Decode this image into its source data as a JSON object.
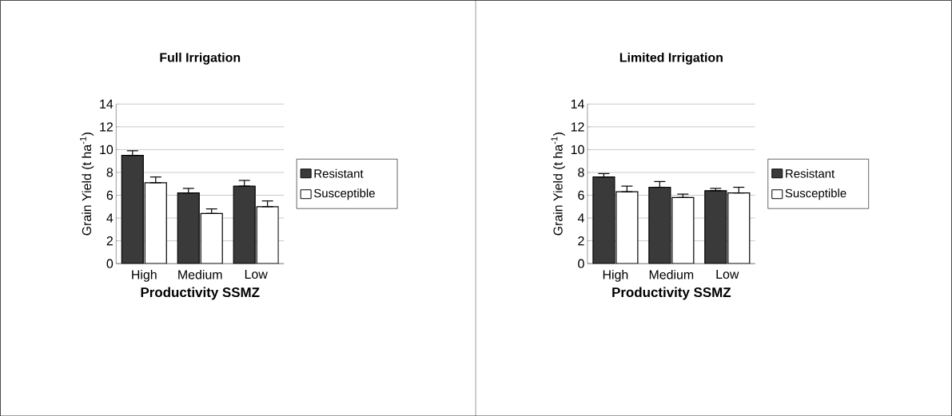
{
  "chart_data": [
    {
      "type": "bar",
      "title": "Full Irrigation",
      "xlabel": "Productivity SSMZ",
      "ylabel": "Grain Yield (t ha$^{-1}$)",
      "categories": [
        "High",
        "Medium",
        "Low"
      ],
      "series": [
        {
          "name": "Resistant",
          "color": "#3a3a3a",
          "values": [
            9.5,
            6.2,
            6.8
          ],
          "errors": [
            [
              9.5,
              9.9
            ],
            [
              6.2,
              6.6
            ],
            [
              6.8,
              7.3
            ]
          ]
        },
        {
          "name": "Susceptible",
          "color": "#ffffff",
          "values": [
            7.1,
            4.4,
            5.0
          ],
          "errors": [
            [
              7.1,
              7.6
            ],
            [
              4.4,
              4.8
            ],
            [
              5.0,
              5.5
            ]
          ]
        }
      ],
      "ylim": [
        0,
        14
      ],
      "yticks": [
        0,
        2,
        4,
        6,
        8,
        10,
        12,
        14
      ],
      "grid": "y",
      "legend": "right"
    },
    {
      "type": "bar",
      "title": "Limited Irrigation",
      "xlabel": "Productivity SSMZ",
      "ylabel": "Grain Yield (t ha$^{-1}$)",
      "categories": [
        "High",
        "Medium",
        "Low"
      ],
      "series": [
        {
          "name": "Resistant",
          "color": "#3a3a3a",
          "values": [
            7.6,
            6.7,
            6.4
          ],
          "errors": [
            [
              7.6,
              7.9
            ],
            [
              6.7,
              7.2
            ],
            [
              6.4,
              6.6
            ]
          ]
        },
        {
          "name": "Susceptible",
          "color": "#ffffff",
          "values": [
            6.3,
            5.8,
            6.2
          ],
          "errors": [
            [
              6.3,
              6.8
            ],
            [
              5.8,
              6.1
            ],
            [
              6.2,
              6.7
            ]
          ]
        }
      ],
      "ylim": [
        0,
        14
      ],
      "yticks": [
        0,
        2,
        4,
        6,
        8,
        10,
        12,
        14
      ],
      "grid": "y",
      "legend": "right"
    }
  ]
}
